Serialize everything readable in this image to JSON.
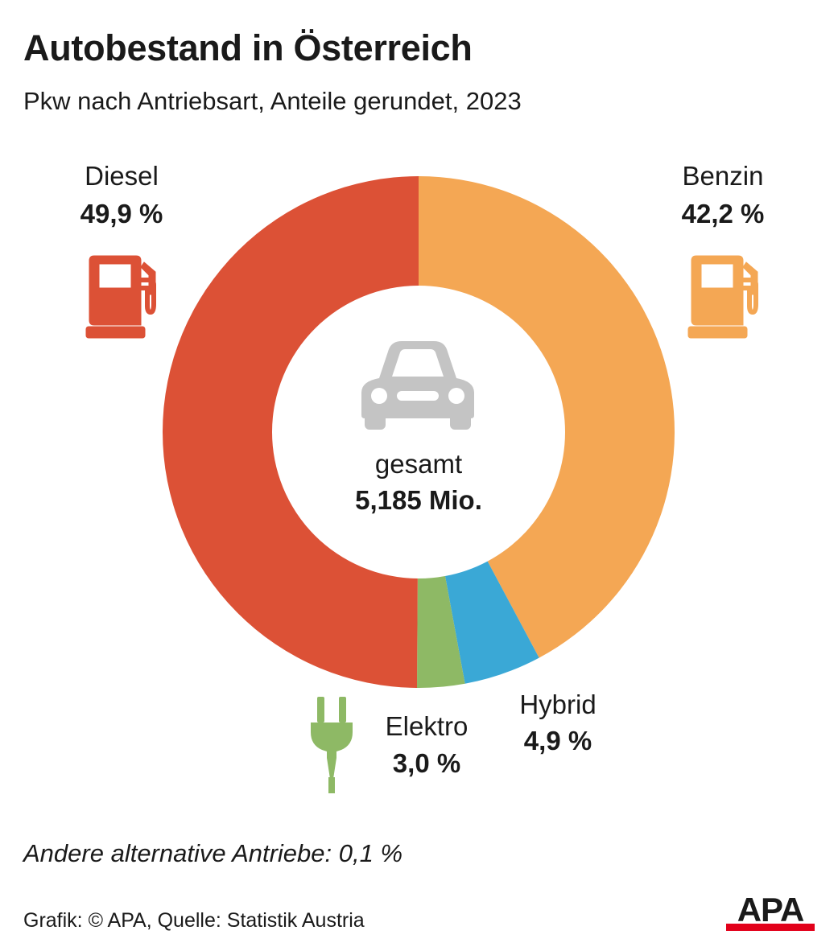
{
  "header": {
    "title": "Autobestand in Österreich",
    "subtitle": "Pkw nach Antriebsart, Anteile gerundet, 2023"
  },
  "chart_data": {
    "type": "pie",
    "variant": "donut",
    "unit": "%",
    "slices": [
      {
        "name": "Benzin",
        "value": 42.2,
        "label": "42,2 %",
        "color": "#F4A754",
        "icon": "fuel-pump-icon"
      },
      {
        "name": "Hybrid",
        "value": 4.9,
        "label": "4,9 %",
        "color": "#3AA8D6",
        "icon": ""
      },
      {
        "name": "Elektro",
        "value": 3.0,
        "label": "3,0 %",
        "color": "#8EB965",
        "icon": "electric-plug-icon"
      },
      {
        "name": "Diesel",
        "value": 49.9,
        "label": "49,9 %",
        "color": "#DC5136",
        "icon": "fuel-pump-icon"
      }
    ],
    "center": {
      "label": "gesamt",
      "value": "5,185 Mio.",
      "icon": "car-icon",
      "icon_color": "#C4C4C4"
    },
    "start": "top",
    "direction": "clockwise"
  },
  "footer": {
    "note": "Andere alternative Antriebe: 0,1 %",
    "source": "Grafik: © APA, Quelle: Statistik Austria",
    "logo_text": "APA",
    "logo_colors": {
      "text": "#1a1a1a",
      "bar": "#E2001A"
    }
  }
}
